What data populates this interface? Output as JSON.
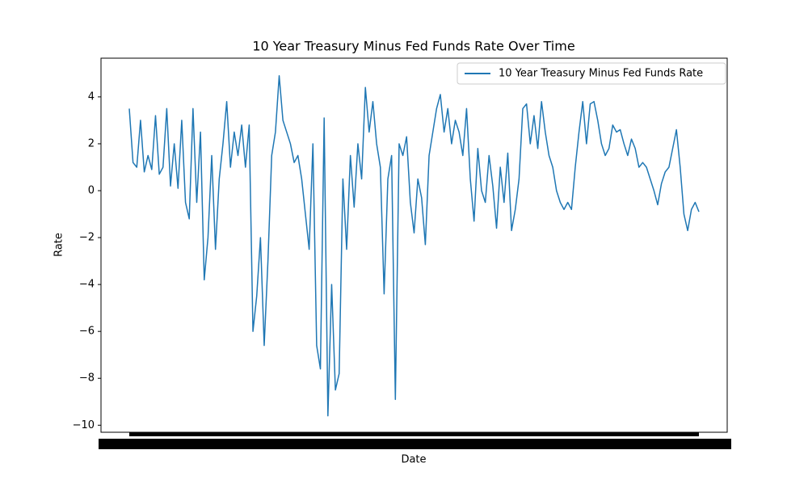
{
  "chart_data": {
    "type": "line",
    "title": "10 Year Treasury Minus Fed Funds Rate Over Time",
    "xlabel": "Date",
    "ylabel": "Rate",
    "categories": [
      null,
      null,
      null,
      null,
      null,
      null,
      null,
      null,
      null,
      null,
      null,
      null,
      null,
      null,
      null,
      null,
      null,
      null,
      null,
      null,
      null,
      null,
      null,
      null,
      null,
      null,
      null,
      null,
      null,
      null,
      null,
      null,
      null,
      null,
      null,
      null,
      null,
      null,
      null,
      null,
      null,
      null,
      null,
      null,
      null,
      null,
      null,
      null,
      null,
      null,
      null,
      null,
      null,
      null,
      null,
      null,
      null,
      null,
      null,
      null,
      null,
      null,
      null,
      null,
      null,
      null,
      null,
      null,
      null,
      null,
      null,
      null,
      null,
      null,
      null,
      null,
      null,
      null,
      null,
      null,
      null,
      null,
      null,
      null,
      null,
      null,
      null,
      null,
      null,
      null,
      null,
      null,
      null,
      null,
      null,
      null,
      null,
      null,
      null,
      null,
      null,
      null,
      null,
      null,
      null,
      null,
      null,
      null,
      null,
      null,
      null,
      null,
      null,
      null,
      null,
      null,
      null,
      null,
      null,
      null,
      null,
      null,
      null,
      null,
      null,
      null,
      null,
      null,
      null,
      null,
      null,
      null,
      null,
      null,
      null,
      null,
      null,
      null,
      null,
      null,
      null,
      null,
      null,
      null,
      null,
      null,
      null,
      null,
      null,
      null,
      null,
      null,
      null
    ],
    "series": [
      {
        "name": "10 Year Treasury Minus Fed Funds Rate",
        "color": "#1f77b4",
        "values": [
          3.5,
          1.2,
          1.0,
          3.0,
          0.8,
          1.5,
          0.9,
          3.2,
          0.7,
          1.0,
          3.5,
          0.2,
          2.0,
          0.1,
          3.0,
          -0.5,
          -1.2,
          3.5,
          -0.5,
          2.5,
          -3.8,
          -2.0,
          1.5,
          -2.5,
          0.5,
          2.0,
          3.8,
          1.0,
          2.5,
          1.5,
          2.8,
          1.0,
          2.8,
          -6.0,
          -4.5,
          -2.0,
          -6.6,
          -3.0,
          1.5,
          2.5,
          4.9,
          3.0,
          2.5,
          2.0,
          1.2,
          1.5,
          0.5,
          -1.0,
          -2.5,
          2.0,
          -6.6,
          -7.6,
          3.1,
          -9.6,
          -4.0,
          -8.5,
          -7.8,
          0.5,
          -2.5,
          1.5,
          -0.7,
          2.0,
          0.5,
          4.4,
          2.5,
          3.8,
          2.0,
          1.0,
          -4.4,
          0.5,
          1.5,
          -8.9,
          2.0,
          1.5,
          2.3,
          -0.5,
          -1.8,
          0.5,
          -0.3,
          -2.3,
          1.5,
          2.5,
          3.5,
          4.1,
          2.5,
          3.5,
          2.0,
          3.0,
          2.5,
          1.5,
          3.5,
          0.5,
          -1.3,
          1.8,
          0.0,
          -0.5,
          1.5,
          0.2,
          -1.6,
          1.0,
          -0.5,
          1.6,
          -1.7,
          -0.8,
          0.5,
          3.5,
          3.7,
          2.0,
          3.2,
          1.8,
          3.8,
          2.5,
          1.5,
          1.0,
          0.0,
          -0.5,
          -0.8,
          -0.5,
          -0.8,
          1.0,
          2.5,
          3.8,
          2.0,
          3.7,
          3.8,
          3.0,
          2.0,
          1.5,
          1.8,
          2.8,
          2.5,
          2.6,
          2.0,
          1.5,
          2.2,
          1.8,
          1.0,
          1.2,
          1.0,
          0.5,
          0.0,
          -0.6,
          0.3,
          0.8,
          1.0,
          1.8,
          2.6,
          1.0,
          -1.0,
          -1.7,
          -0.8,
          -0.5,
          -0.9
        ]
      }
    ],
    "ylim": [
      -10.3,
      5.65
    ],
    "yticks": [
      {
        "value": -10,
        "label": "−10"
      },
      {
        "value": -8,
        "label": "−8"
      },
      {
        "value": -6,
        "label": "−6"
      },
      {
        "value": -4,
        "label": "−4"
      },
      {
        "value": -2,
        "label": "−2"
      },
      0,
      2,
      4
    ],
    "legend": "upper right",
    "grid": false
  }
}
